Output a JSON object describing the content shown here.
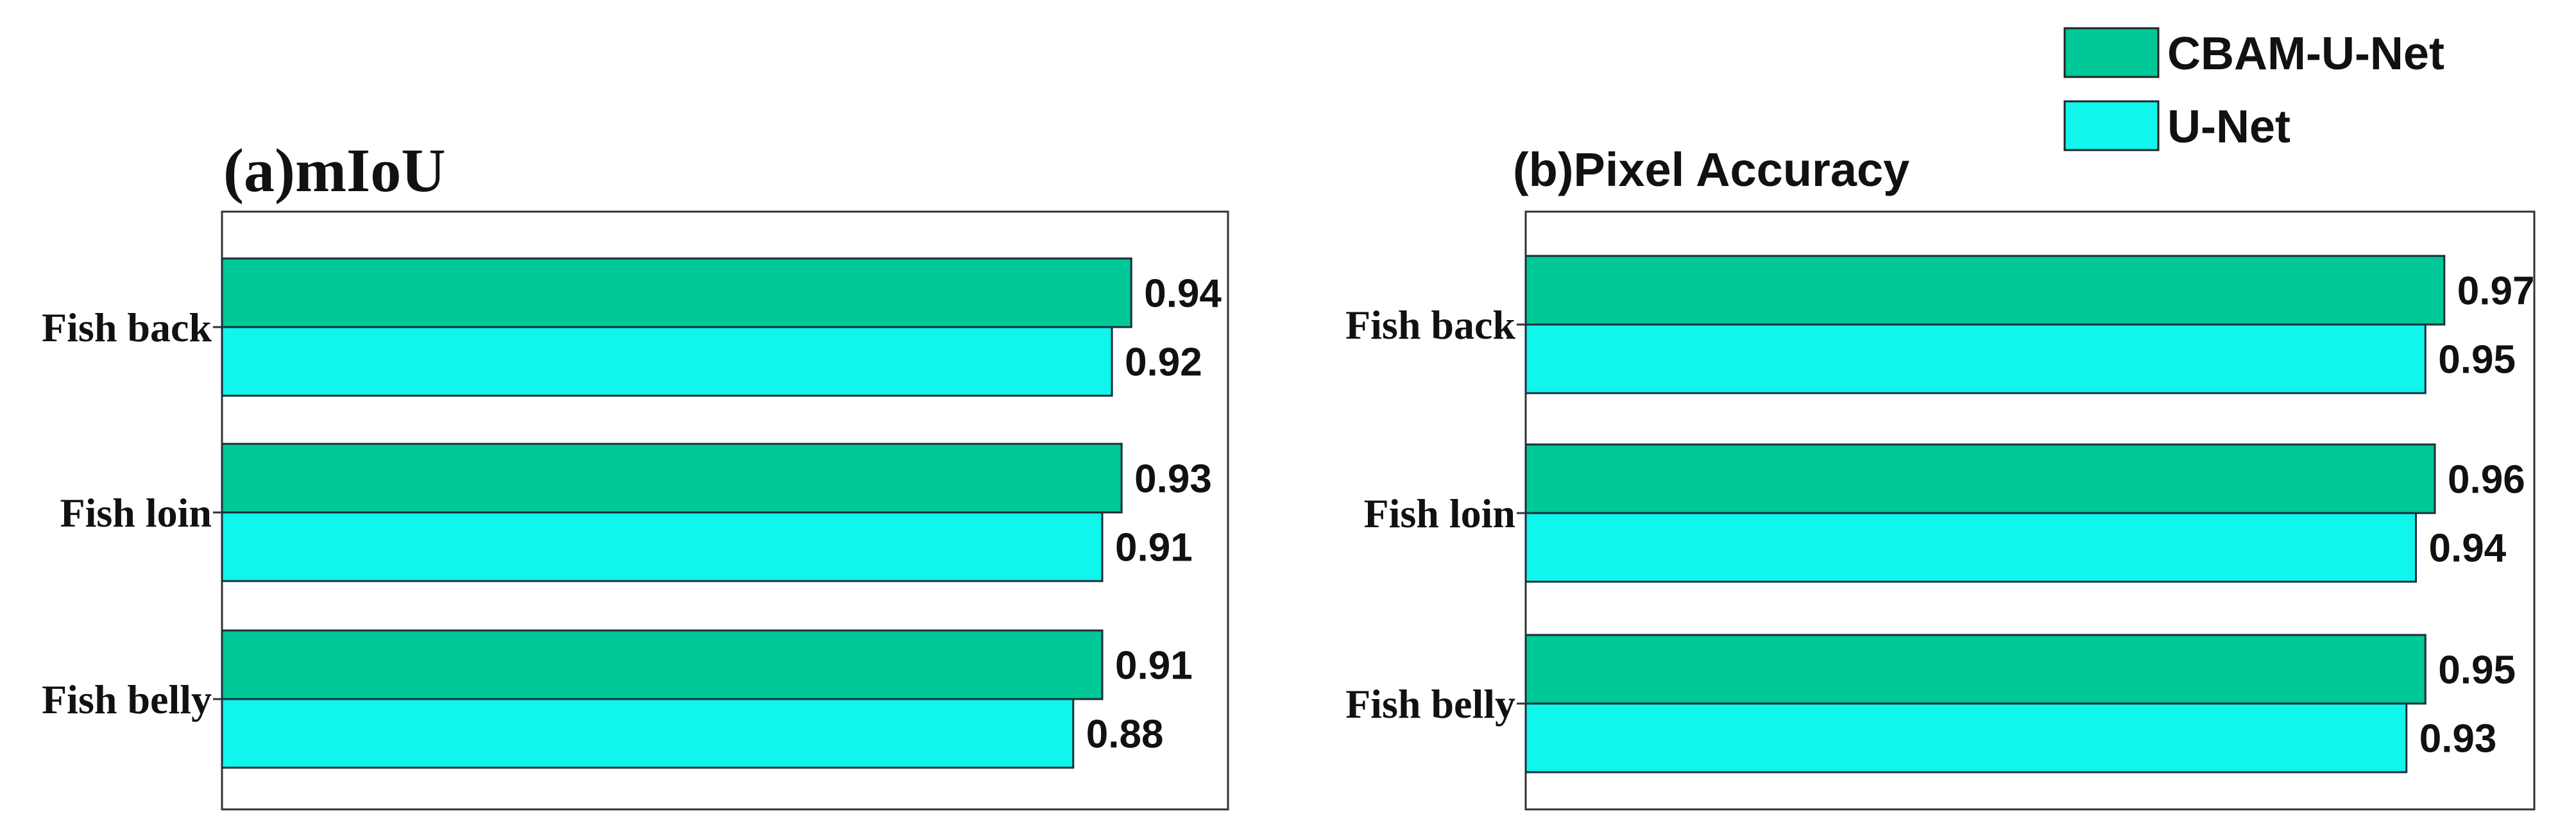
{
  "legend": {
    "placement": "top-right",
    "items": [
      {
        "label": "CBAM-U-Net",
        "color": "#00C896"
      },
      {
        "label": "U-Net",
        "color": "#10F5EC"
      }
    ]
  },
  "chart_data": [
    {
      "type": "bar",
      "orientation": "horizontal",
      "title": "(a)mIoU",
      "categories": [
        "Fish back",
        "Fish loin",
        "Fish belly"
      ],
      "series": [
        {
          "name": "CBAM-U-Net",
          "color": "#00C896",
          "values": [
            0.94,
            0.93,
            0.91
          ],
          "labels": [
            "0.94",
            "0.93",
            "0.91"
          ]
        },
        {
          "name": "U-Net",
          "color": "#10F5EC",
          "values": [
            0.92,
            0.91,
            0.88
          ],
          "labels": [
            "0.92",
            "0.91",
            "0.88"
          ]
        }
      ],
      "xlim": [
        0,
        1.04
      ],
      "xlabel": "",
      "ylabel": "",
      "grid": false
    },
    {
      "type": "bar",
      "orientation": "horizontal",
      "title": "(b)Pixel Accuracy",
      "categories": [
        "Fish back",
        "Fish loin",
        "Fish belly"
      ],
      "series": [
        {
          "name": "CBAM-U-Net",
          "color": "#00C896",
          "values": [
            0.97,
            0.96,
            0.95
          ],
          "labels": [
            "0.97",
            "0.96",
            "0.95"
          ]
        },
        {
          "name": "U-Net",
          "color": "#10F5EC",
          "values": [
            0.95,
            0.94,
            0.93
          ],
          "labels": [
            "0.95",
            "0.94",
            "0.93"
          ]
        }
      ],
      "xlim": [
        0,
        1.065
      ],
      "xlabel": "",
      "ylabel": "",
      "grid": false
    }
  ]
}
